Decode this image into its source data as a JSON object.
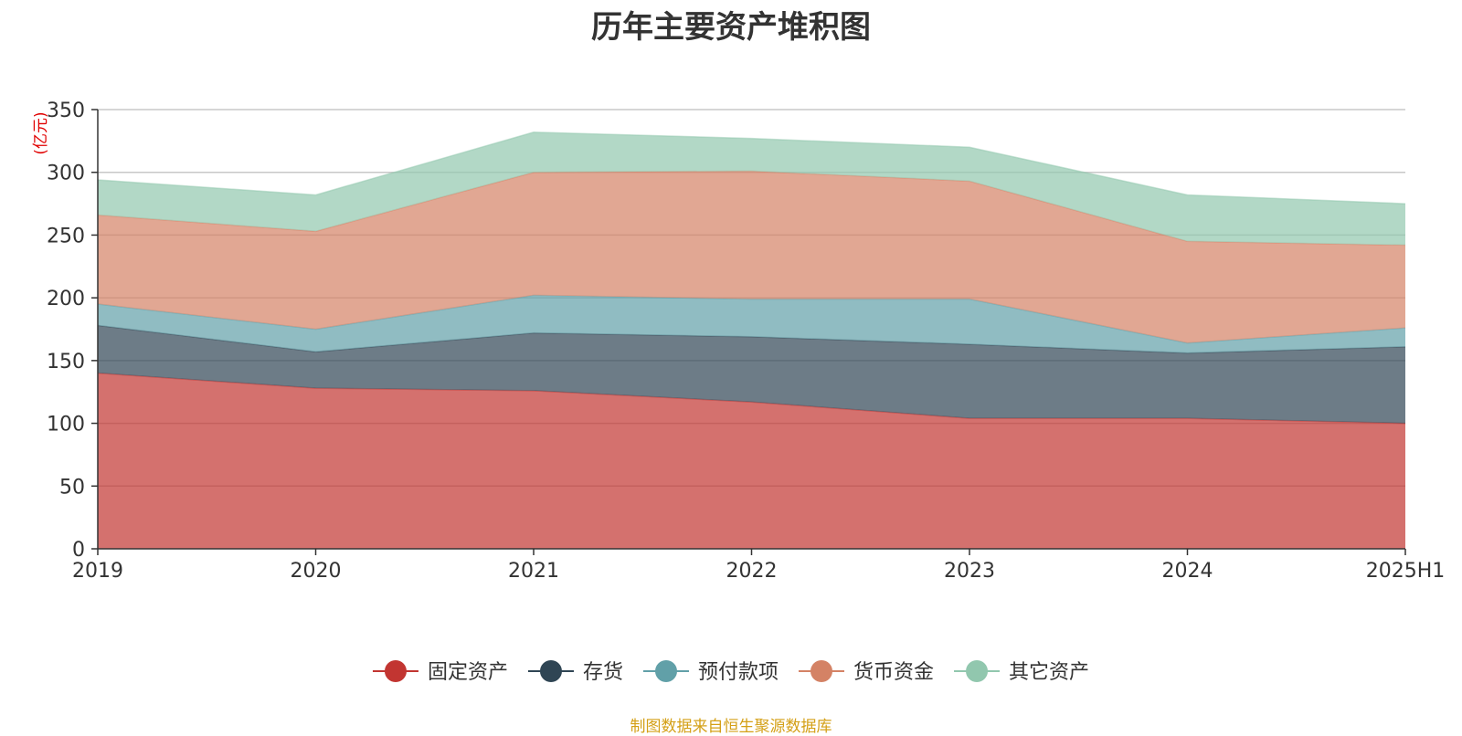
{
  "chart_data": {
    "type": "area",
    "title": "历年主要资产堆积图",
    "unit": "(亿元)",
    "categories": [
      "2019",
      "2020",
      "2021",
      "2022",
      "2023",
      "2024",
      "2025H1"
    ],
    "stacked": true,
    "ylim": [
      0,
      350
    ],
    "yticks": [
      0,
      50,
      100,
      150,
      200,
      250,
      300,
      350
    ],
    "grid": true,
    "legend_position": "bottom",
    "series": [
      {
        "name": "固定资产",
        "color": "#c23531",
        "values": [
          140,
          128,
          126,
          117,
          104,
          104,
          100
        ]
      },
      {
        "name": "存货",
        "color": "#2f4554",
        "values": [
          38,
          29,
          46,
          52,
          59,
          52,
          61
        ]
      },
      {
        "name": "预付款项",
        "color": "#61a0a8",
        "values": [
          17,
          18,
          30,
          30,
          36,
          8,
          15
        ]
      },
      {
        "name": "货币资金",
        "color": "#d48265",
        "values": [
          71,
          78,
          98,
          102,
          94,
          81,
          66
        ]
      },
      {
        "name": "其它资产",
        "color": "#91c7ae",
        "values": [
          28,
          29,
          32,
          26,
          27,
          37,
          33
        ]
      }
    ]
  },
  "source_note": "制图数据来自恒生聚源数据库"
}
